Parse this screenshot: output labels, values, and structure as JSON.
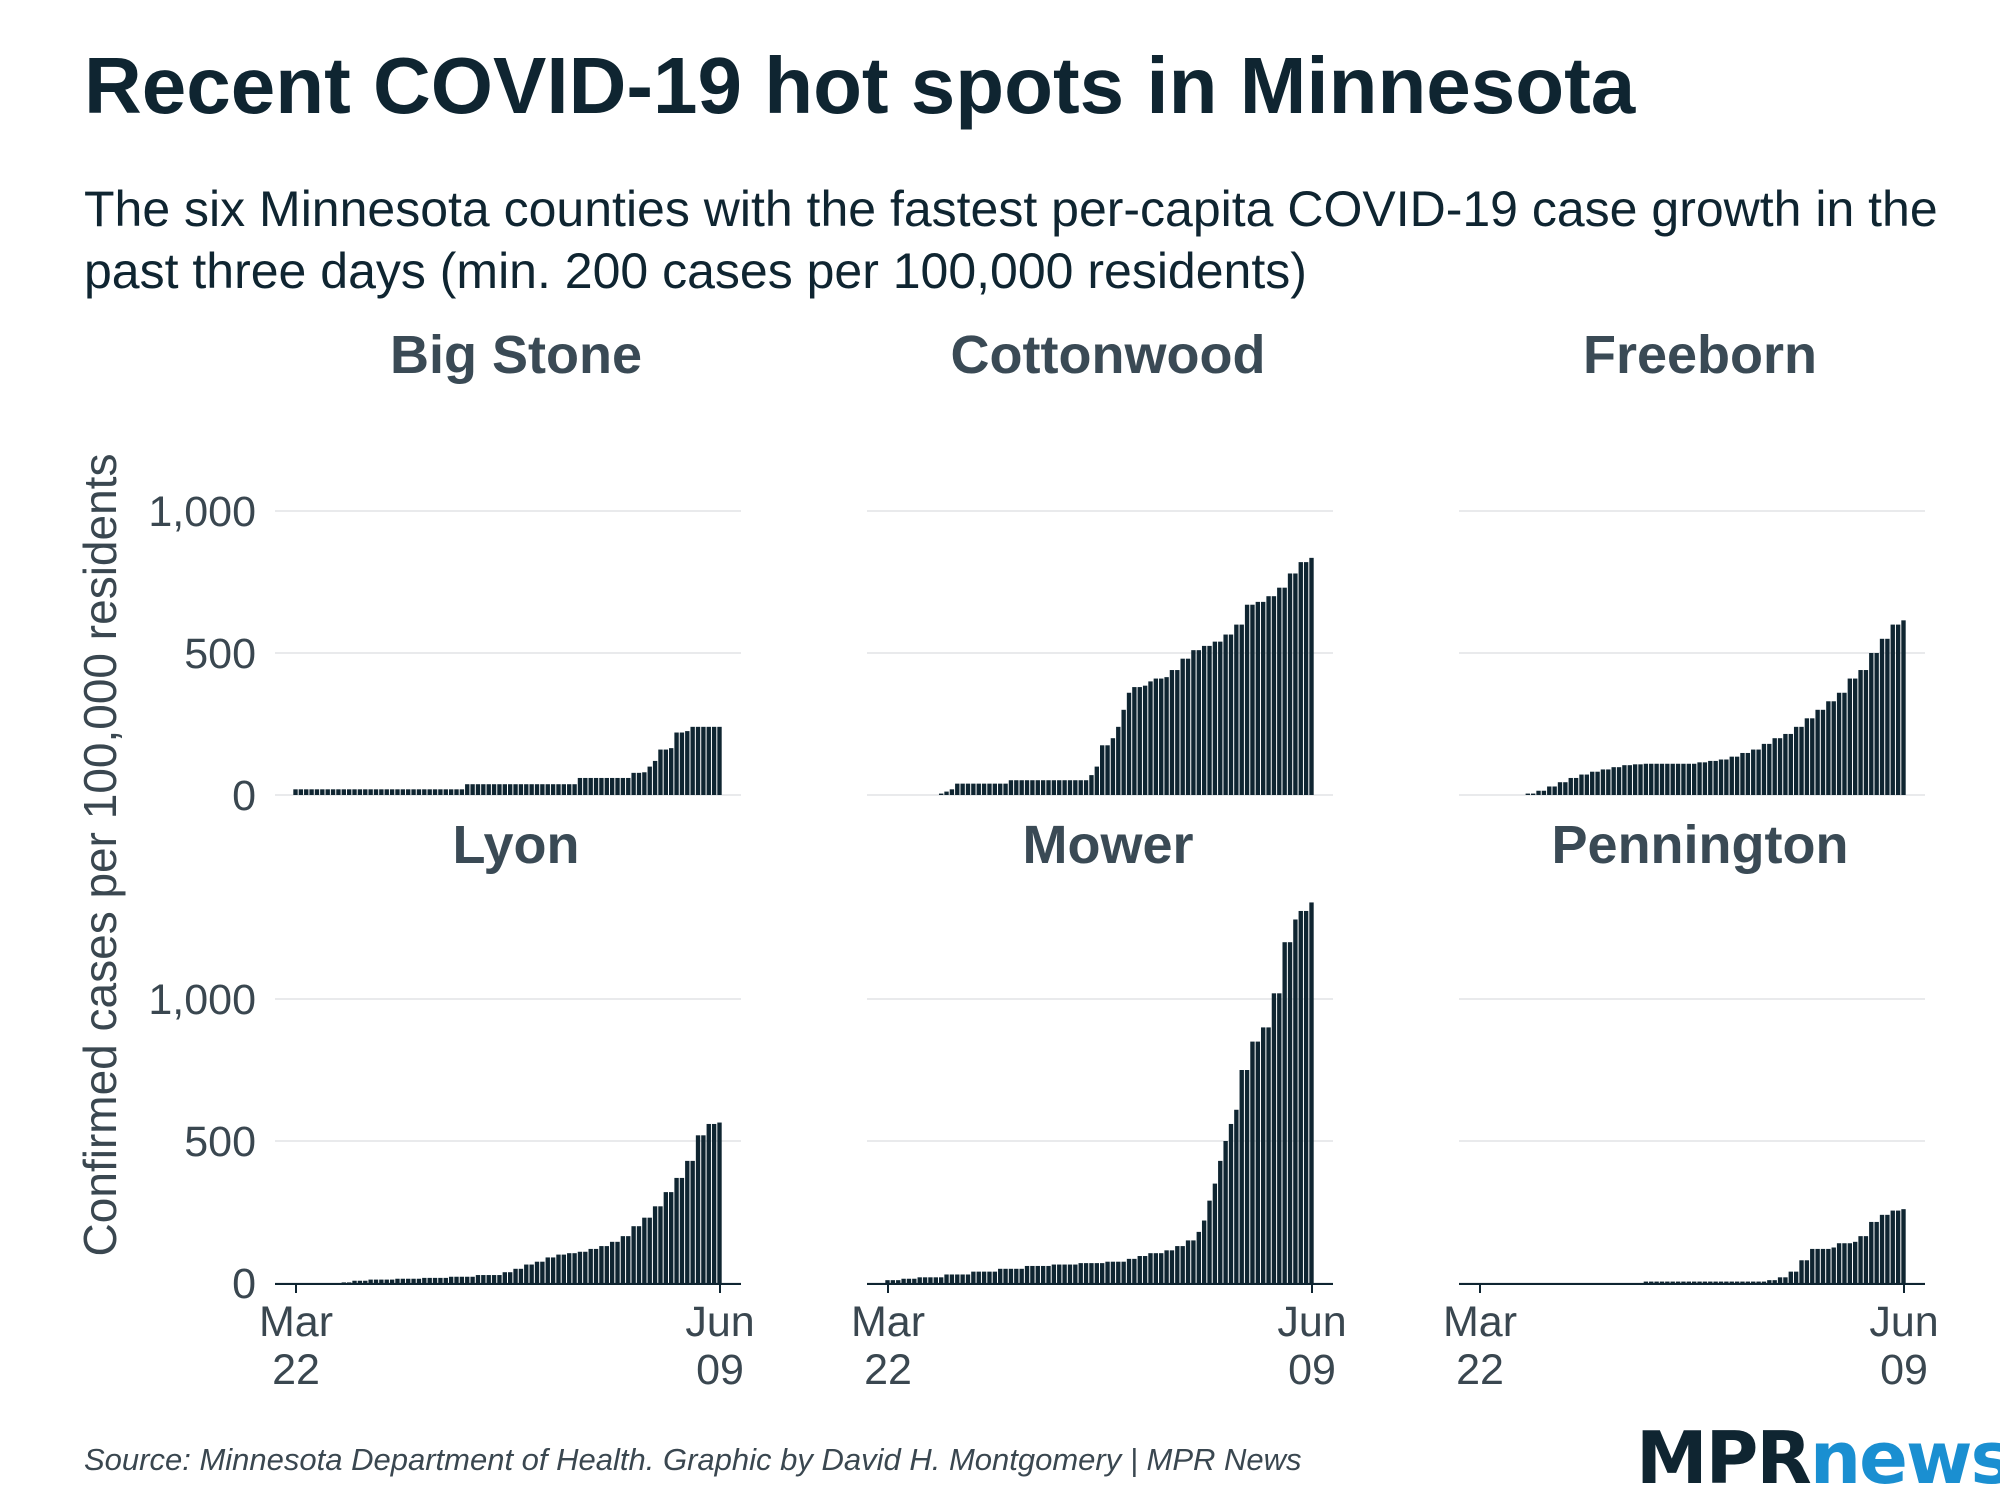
{
  "title": "Recent COVID-19 hot spots in Minnesota",
  "subtitle": "The six Minnesota counties with the fastest per-capita COVID-19 case growth in the past three days (min. 200 cases per 100,000 residents)",
  "source": "Source: Minnesota Department of Health. Graphic by David H. Montgomery | MPR News",
  "logo": {
    "part1": "MPR",
    "part2": "news"
  },
  "colors": {
    "bar": "#0f2531",
    "grid": "#e2e4e6",
    "axis": "#0f2531",
    "text": "#3a4750",
    "logo_accent": "#1a8fd1"
  },
  "chart_data": {
    "type": "bar",
    "ylabel": "Confirmed cases per 100,000 residents",
    "xlabel": "",
    "x_range": [
      "2020-03-22",
      "2020-06-09"
    ],
    "ylim": [
      0,
      1300
    ],
    "y_ticks": [
      {
        "value": 0,
        "label": "0"
      },
      {
        "value": 500,
        "label": "500"
      },
      {
        "value": 1000,
        "label": "1,000"
      }
    ],
    "x_ticks": [
      {
        "date": "2020-03-22",
        "label_line1": "Mar",
        "label_line2": "22"
      },
      {
        "date": "2020-06-09",
        "label_line1": "Jun",
        "label_line2": "09"
      }
    ],
    "grid": true,
    "panels": [
      {
        "name": "Big Stone",
        "series": [
          {
            "date": "2020-03-22",
            "value": 20
          },
          {
            "date": "2020-04-22",
            "value": 20
          },
          {
            "date": "2020-04-23",
            "value": 38
          },
          {
            "date": "2020-05-13",
            "value": 38
          },
          {
            "date": "2020-05-14",
            "value": 60
          },
          {
            "date": "2020-05-23",
            "value": 60
          },
          {
            "date": "2020-05-24",
            "value": 78
          },
          {
            "date": "2020-05-26",
            "value": 80
          },
          {
            "date": "2020-05-27",
            "value": 100
          },
          {
            "date": "2020-05-28",
            "value": 120
          },
          {
            "date": "2020-05-29",
            "value": 160
          },
          {
            "date": "2020-05-31",
            "value": 165
          },
          {
            "date": "2020-06-01",
            "value": 220
          },
          {
            "date": "2020-06-03",
            "value": 225
          },
          {
            "date": "2020-06-04",
            "value": 240
          },
          {
            "date": "2020-06-09",
            "value": 240
          }
        ]
      },
      {
        "name": "Cottonwood",
        "series": [
          {
            "date": "2020-04-01",
            "value": 5
          },
          {
            "date": "2020-04-02",
            "value": 12
          },
          {
            "date": "2020-04-03",
            "value": 20
          },
          {
            "date": "2020-04-04",
            "value": 40
          },
          {
            "date": "2020-04-13",
            "value": 40
          },
          {
            "date": "2020-04-14",
            "value": 52
          },
          {
            "date": "2020-04-28",
            "value": 52
          },
          {
            "date": "2020-04-29",
            "value": 70
          },
          {
            "date": "2020-04-30",
            "value": 100
          },
          {
            "date": "2020-05-01",
            "value": 175
          },
          {
            "date": "2020-05-03",
            "value": 200
          },
          {
            "date": "2020-05-04",
            "value": 240
          },
          {
            "date": "2020-05-05",
            "value": 300
          },
          {
            "date": "2020-05-06",
            "value": 360
          },
          {
            "date": "2020-05-07",
            "value": 380
          },
          {
            "date": "2020-05-09",
            "value": 385
          },
          {
            "date": "2020-05-10",
            "value": 400
          },
          {
            "date": "2020-05-11",
            "value": 410
          },
          {
            "date": "2020-05-13",
            "value": 415
          },
          {
            "date": "2020-05-14",
            "value": 440
          },
          {
            "date": "2020-05-16",
            "value": 480
          },
          {
            "date": "2020-05-18",
            "value": 510
          },
          {
            "date": "2020-05-20",
            "value": 525
          },
          {
            "date": "2020-05-22",
            "value": 540
          },
          {
            "date": "2020-05-24",
            "value": 565
          },
          {
            "date": "2020-05-26",
            "value": 600
          },
          {
            "date": "2020-05-28",
            "value": 670
          },
          {
            "date": "2020-05-30",
            "value": 680
          },
          {
            "date": "2020-06-01",
            "value": 700
          },
          {
            "date": "2020-06-03",
            "value": 730
          },
          {
            "date": "2020-06-05",
            "value": 780
          },
          {
            "date": "2020-06-07",
            "value": 820
          },
          {
            "date": "2020-06-09",
            "value": 835
          }
        ]
      },
      {
        "name": "Freeborn",
        "series": [
          {
            "date": "2020-03-31",
            "value": 5
          },
          {
            "date": "2020-04-02",
            "value": 15
          },
          {
            "date": "2020-04-04",
            "value": 30
          },
          {
            "date": "2020-04-06",
            "value": 45
          },
          {
            "date": "2020-04-08",
            "value": 60
          },
          {
            "date": "2020-04-10",
            "value": 72
          },
          {
            "date": "2020-04-12",
            "value": 82
          },
          {
            "date": "2020-04-14",
            "value": 90
          },
          {
            "date": "2020-04-16",
            "value": 98
          },
          {
            "date": "2020-04-18",
            "value": 105
          },
          {
            "date": "2020-04-20",
            "value": 108
          },
          {
            "date": "2020-04-22",
            "value": 110
          },
          {
            "date": "2020-04-30",
            "value": 110
          },
          {
            "date": "2020-05-02",
            "value": 115
          },
          {
            "date": "2020-05-04",
            "value": 120
          },
          {
            "date": "2020-05-06",
            "value": 125
          },
          {
            "date": "2020-05-08",
            "value": 135
          },
          {
            "date": "2020-05-10",
            "value": 148
          },
          {
            "date": "2020-05-12",
            "value": 160
          },
          {
            "date": "2020-05-14",
            "value": 180
          },
          {
            "date": "2020-05-16",
            "value": 200
          },
          {
            "date": "2020-05-18",
            "value": 215
          },
          {
            "date": "2020-05-20",
            "value": 240
          },
          {
            "date": "2020-05-22",
            "value": 270
          },
          {
            "date": "2020-05-24",
            "value": 300
          },
          {
            "date": "2020-05-26",
            "value": 330
          },
          {
            "date": "2020-05-28",
            "value": 360
          },
          {
            "date": "2020-05-30",
            "value": 410
          },
          {
            "date": "2020-06-01",
            "value": 440
          },
          {
            "date": "2020-06-03",
            "value": 500
          },
          {
            "date": "2020-06-05",
            "value": 550
          },
          {
            "date": "2020-06-07",
            "value": 600
          },
          {
            "date": "2020-06-09",
            "value": 615
          }
        ]
      },
      {
        "name": "Lyon",
        "series": [
          {
            "date": "2020-03-31",
            "value": 2
          },
          {
            "date": "2020-04-02",
            "value": 8
          },
          {
            "date": "2020-04-05",
            "value": 12
          },
          {
            "date": "2020-04-10",
            "value": 15
          },
          {
            "date": "2020-04-15",
            "value": 18
          },
          {
            "date": "2020-04-20",
            "value": 22
          },
          {
            "date": "2020-04-25",
            "value": 28
          },
          {
            "date": "2020-04-30",
            "value": 38
          },
          {
            "date": "2020-05-02",
            "value": 50
          },
          {
            "date": "2020-05-04",
            "value": 65
          },
          {
            "date": "2020-05-06",
            "value": 75
          },
          {
            "date": "2020-05-08",
            "value": 90
          },
          {
            "date": "2020-05-10",
            "value": 100
          },
          {
            "date": "2020-05-12",
            "value": 105
          },
          {
            "date": "2020-05-14",
            "value": 110
          },
          {
            "date": "2020-05-16",
            "value": 120
          },
          {
            "date": "2020-05-18",
            "value": 130
          },
          {
            "date": "2020-05-20",
            "value": 145
          },
          {
            "date": "2020-05-22",
            "value": 165
          },
          {
            "date": "2020-05-24",
            "value": 200
          },
          {
            "date": "2020-05-26",
            "value": 230
          },
          {
            "date": "2020-05-28",
            "value": 270
          },
          {
            "date": "2020-05-30",
            "value": 320
          },
          {
            "date": "2020-06-01",
            "value": 370
          },
          {
            "date": "2020-06-03",
            "value": 430
          },
          {
            "date": "2020-06-05",
            "value": 520
          },
          {
            "date": "2020-06-07",
            "value": 560
          },
          {
            "date": "2020-06-09",
            "value": 565
          }
        ]
      },
      {
        "name": "Mower",
        "series": [
          {
            "date": "2020-03-22",
            "value": 10
          },
          {
            "date": "2020-03-25",
            "value": 15
          },
          {
            "date": "2020-03-28",
            "value": 20
          },
          {
            "date": "2020-04-02",
            "value": 30
          },
          {
            "date": "2020-04-07",
            "value": 40
          },
          {
            "date": "2020-04-12",
            "value": 50
          },
          {
            "date": "2020-04-17",
            "value": 60
          },
          {
            "date": "2020-04-22",
            "value": 65
          },
          {
            "date": "2020-04-27",
            "value": 70
          },
          {
            "date": "2020-05-02",
            "value": 75
          },
          {
            "date": "2020-05-06",
            "value": 85
          },
          {
            "date": "2020-05-08",
            "value": 95
          },
          {
            "date": "2020-05-10",
            "value": 105
          },
          {
            "date": "2020-05-13",
            "value": 115
          },
          {
            "date": "2020-05-15",
            "value": 130
          },
          {
            "date": "2020-05-17",
            "value": 150
          },
          {
            "date": "2020-05-19",
            "value": 180
          },
          {
            "date": "2020-05-20",
            "value": 220
          },
          {
            "date": "2020-05-21",
            "value": 290
          },
          {
            "date": "2020-05-22",
            "value": 350
          },
          {
            "date": "2020-05-23",
            "value": 430
          },
          {
            "date": "2020-05-24",
            "value": 500
          },
          {
            "date": "2020-05-25",
            "value": 560
          },
          {
            "date": "2020-05-26",
            "value": 610
          },
          {
            "date": "2020-05-27",
            "value": 750
          },
          {
            "date": "2020-05-29",
            "value": 850
          },
          {
            "date": "2020-05-31",
            "value": 900
          },
          {
            "date": "2020-06-02",
            "value": 1020
          },
          {
            "date": "2020-06-04",
            "value": 1200
          },
          {
            "date": "2020-06-06",
            "value": 1280
          },
          {
            "date": "2020-06-07",
            "value": 1310
          },
          {
            "date": "2020-06-09",
            "value": 1340
          }
        ]
      },
      {
        "name": "Pennington",
        "series": [
          {
            "date": "2020-04-22",
            "value": 5
          },
          {
            "date": "2020-05-14",
            "value": 5
          },
          {
            "date": "2020-05-15",
            "value": 10
          },
          {
            "date": "2020-05-17",
            "value": 20
          },
          {
            "date": "2020-05-19",
            "value": 40
          },
          {
            "date": "2020-05-21",
            "value": 80
          },
          {
            "date": "2020-05-23",
            "value": 120
          },
          {
            "date": "2020-05-27",
            "value": 125
          },
          {
            "date": "2020-05-28",
            "value": 140
          },
          {
            "date": "2020-05-31",
            "value": 145
          },
          {
            "date": "2020-06-01",
            "value": 165
          },
          {
            "date": "2020-06-03",
            "value": 215
          },
          {
            "date": "2020-06-05",
            "value": 240
          },
          {
            "date": "2020-06-07",
            "value": 255
          },
          {
            "date": "2020-06-09",
            "value": 260
          }
        ]
      }
    ]
  }
}
